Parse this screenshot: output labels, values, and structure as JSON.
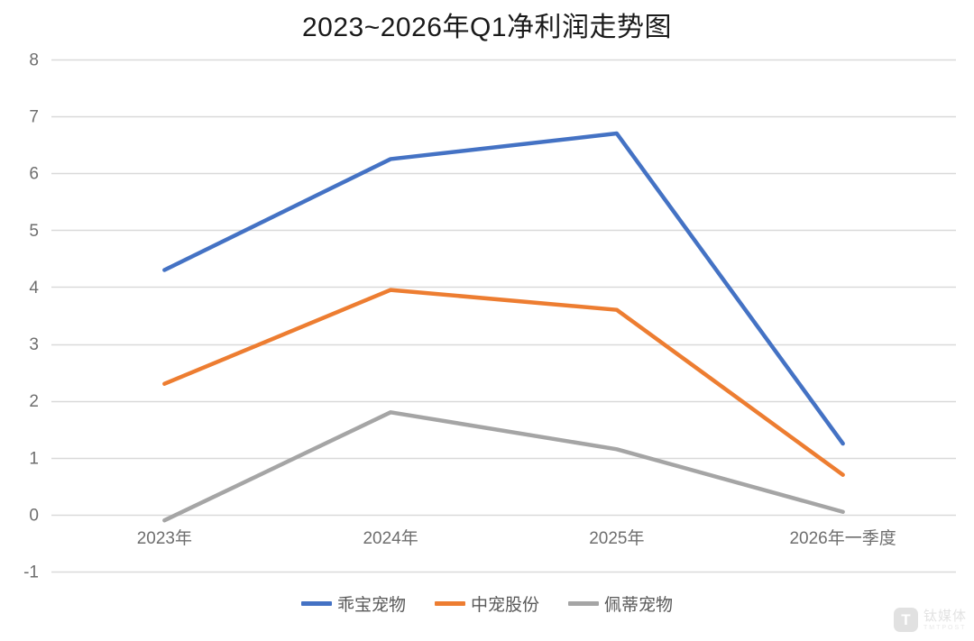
{
  "page": {
    "title": "2023~2026年Q1净利润走势图"
  },
  "chart_data": {
    "type": "line",
    "title": "2023~2026年Q1净利润走势图",
    "categories": [
      "2023年",
      "2024年",
      "2025年",
      "2026年一季度"
    ],
    "series": [
      {
        "name": "乖宝宠物",
        "color": "#4472C4",
        "values": [
          4.3,
          6.25,
          6.7,
          1.25
        ]
      },
      {
        "name": "中宠股份",
        "color": "#ED7D31",
        "values": [
          2.3,
          3.95,
          3.6,
          0.7
        ]
      },
      {
        "name": "佩蒂宠物",
        "color": "#A5A5A5",
        "values": [
          -0.1,
          1.8,
          1.15,
          0.05
        ]
      }
    ],
    "xlabel": "",
    "ylabel": "",
    "ylim": [
      -1,
      8
    ],
    "ytick_step": 1,
    "yticks": [
      -1,
      0,
      1,
      2,
      3,
      4,
      5,
      6,
      7,
      8
    ],
    "grid": true,
    "gridline_color": "#D9D9D9",
    "axis_label_color": "#6e6e6e",
    "legend_position": "bottom",
    "legend_labels": [
      "乖宝宠物",
      "中宠股份",
      "佩蒂宠物"
    ]
  },
  "watermark": {
    "logo_letter": "T",
    "name": "钛媒体",
    "subtext": "TMTPOST"
  }
}
